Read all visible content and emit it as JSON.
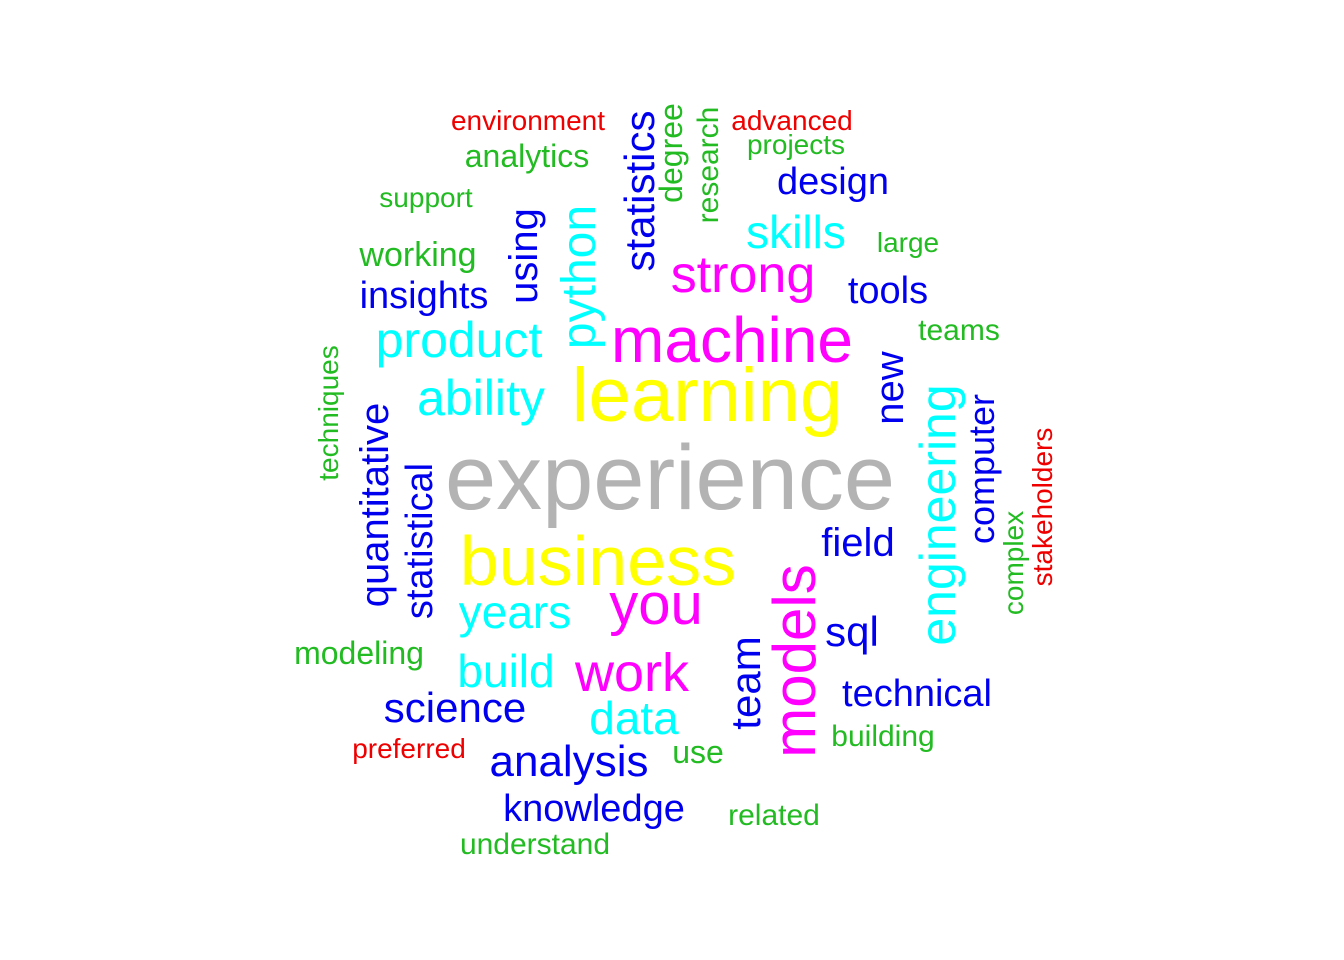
{
  "palette": {
    "gray": "#b3b3b3",
    "yellow": "#ffff00",
    "magenta": "#ff00ff",
    "cyan": "#00ffff",
    "blue": "#0000ee",
    "green": "#22bb22",
    "red": "#ee0000"
  },
  "words": [
    {
      "text": "experience",
      "color": "gray"
    },
    {
      "text": "learning",
      "color": "yellow"
    },
    {
      "text": "business",
      "color": "yellow"
    },
    {
      "text": "machine",
      "color": "magenta"
    },
    {
      "text": "models",
      "color": "magenta"
    },
    {
      "text": "strong",
      "color": "magenta"
    },
    {
      "text": "you",
      "color": "magenta"
    },
    {
      "text": "work",
      "color": "magenta"
    },
    {
      "text": "engineering",
      "color": "cyan"
    },
    {
      "text": "python",
      "color": "cyan"
    },
    {
      "text": "product",
      "color": "cyan"
    },
    {
      "text": "ability",
      "color": "cyan"
    },
    {
      "text": "skills",
      "color": "cyan"
    },
    {
      "text": "years",
      "color": "cyan"
    },
    {
      "text": "build",
      "color": "cyan"
    },
    {
      "text": "data",
      "color": "cyan"
    },
    {
      "text": "statistics",
      "color": "blue"
    },
    {
      "text": "using",
      "color": "blue"
    },
    {
      "text": "insights",
      "color": "blue"
    },
    {
      "text": "design",
      "color": "blue"
    },
    {
      "text": "tools",
      "color": "blue"
    },
    {
      "text": "new",
      "color": "blue"
    },
    {
      "text": "quantitative",
      "color": "blue"
    },
    {
      "text": "statistical",
      "color": "blue"
    },
    {
      "text": "computer",
      "color": "blue"
    },
    {
      "text": "field",
      "color": "blue"
    },
    {
      "text": "sql",
      "color": "blue"
    },
    {
      "text": "team",
      "color": "blue"
    },
    {
      "text": "technical",
      "color": "blue"
    },
    {
      "text": "science",
      "color": "blue"
    },
    {
      "text": "analysis",
      "color": "blue"
    },
    {
      "text": "knowledge",
      "color": "blue"
    },
    {
      "text": "analytics",
      "color": "green"
    },
    {
      "text": "degree",
      "color": "green"
    },
    {
      "text": "research",
      "color": "green"
    },
    {
      "text": "projects",
      "color": "green"
    },
    {
      "text": "support",
      "color": "green"
    },
    {
      "text": "working",
      "color": "green"
    },
    {
      "text": "large",
      "color": "green"
    },
    {
      "text": "teams",
      "color": "green"
    },
    {
      "text": "techniques",
      "color": "green"
    },
    {
      "text": "complex",
      "color": "green"
    },
    {
      "text": "modeling",
      "color": "green"
    },
    {
      "text": "building",
      "color": "green"
    },
    {
      "text": "use",
      "color": "green"
    },
    {
      "text": "related",
      "color": "green"
    },
    {
      "text": "understand",
      "color": "green"
    },
    {
      "text": "environment",
      "color": "red"
    },
    {
      "text": "advanced",
      "color": "red"
    },
    {
      "text": "stakeholders",
      "color": "red"
    },
    {
      "text": "preferred",
      "color": "red"
    }
  ]
}
